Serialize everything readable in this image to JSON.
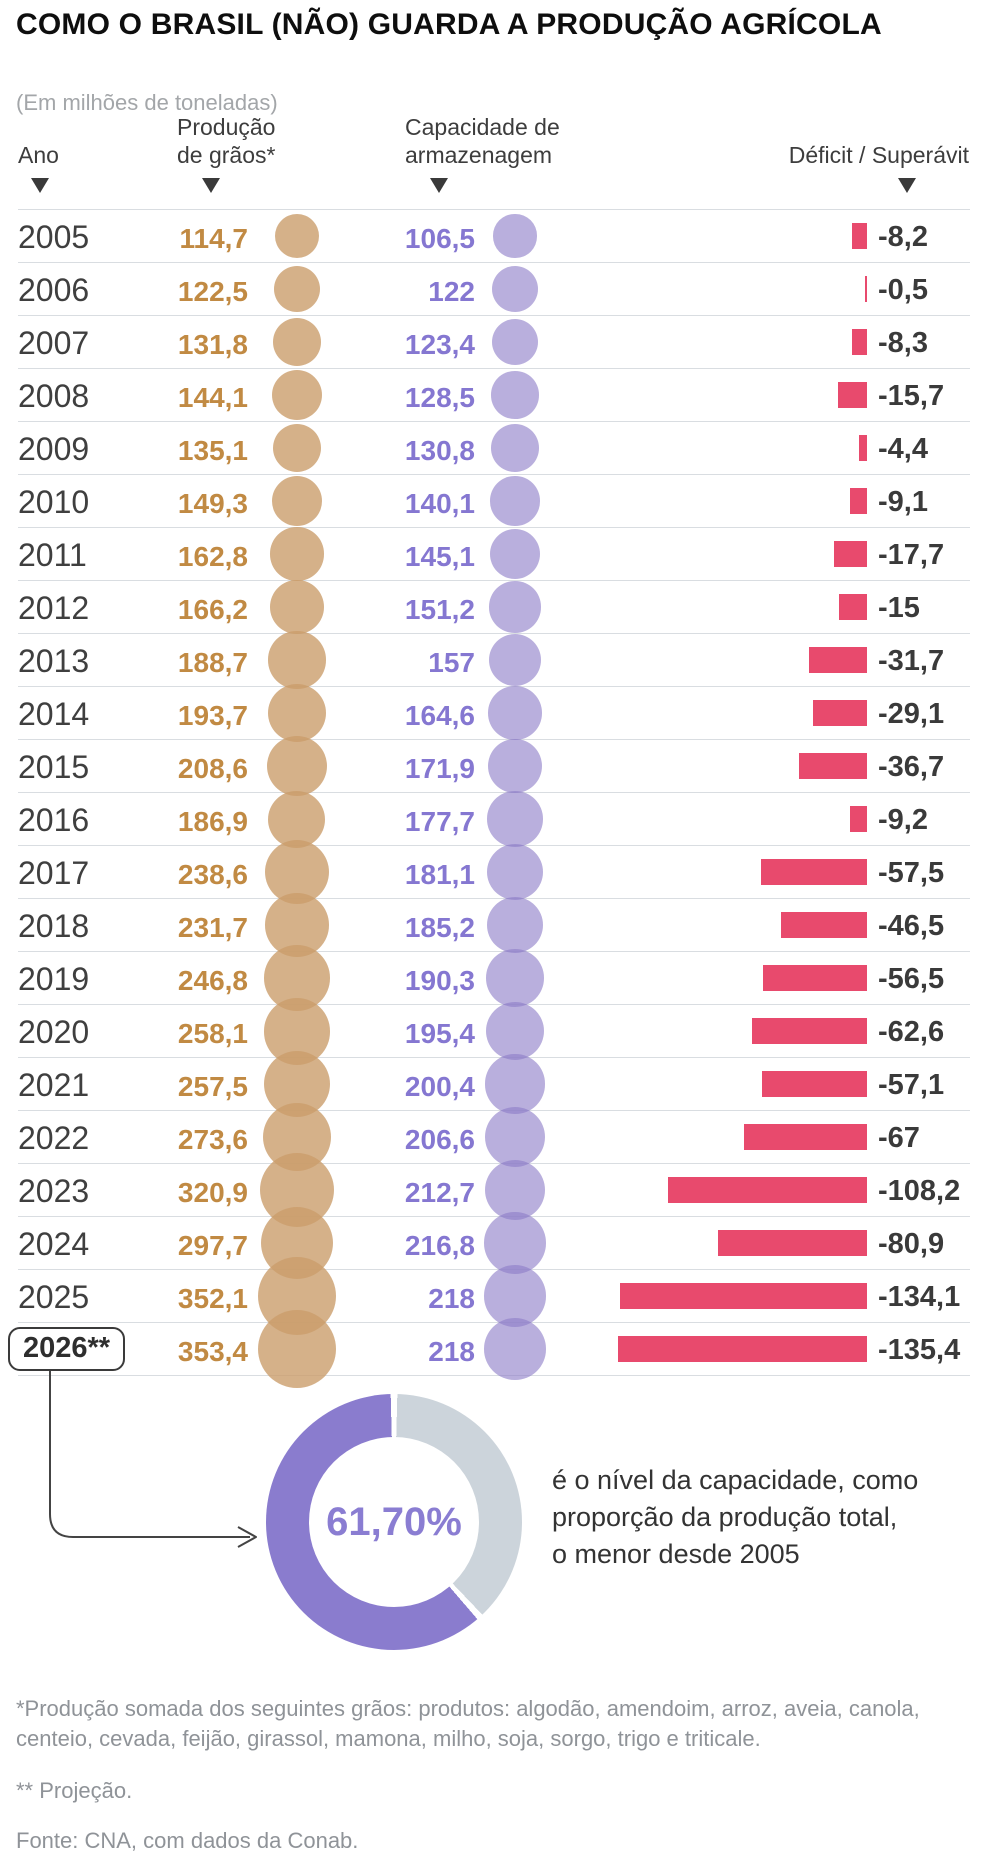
{
  "title": "COMO O BRASIL (NÃO) GUARDA A PRODUÇÃO AGRÍCOLA",
  "subtitle": "(Em milhões de toneladas)",
  "header": {
    "col_year": "Ano",
    "col_production": "Produção\nde grãos*",
    "col_capacity": "Capacidade de\narmazenagem",
    "col_deficit": "Déficit / Superávit"
  },
  "chart_data": [
    {
      "type": "table",
      "title": "COMO O BRASIL (NÃO) GUARDA A PRODUÇÃO AGRÍCOLA",
      "unit": "milhões de toneladas",
      "columns": [
        "Ano",
        "Produção de grãos*",
        "Capacidade de armazenagem",
        "Déficit / Superávit"
      ],
      "rows": [
        {
          "year": "2005",
          "production": 114.7,
          "production_label": "114,7",
          "capacity": 106.5,
          "capacity_label": "106,5",
          "deficit": -8.2,
          "deficit_label": "-8,2"
        },
        {
          "year": "2006",
          "production": 122.5,
          "production_label": "122,5",
          "capacity": 122,
          "capacity_label": "122",
          "deficit": -0.5,
          "deficit_label": "-0,5"
        },
        {
          "year": "2007",
          "production": 131.8,
          "production_label": "131,8",
          "capacity": 123.4,
          "capacity_label": "123,4",
          "deficit": -8.3,
          "deficit_label": "-8,3"
        },
        {
          "year": "2008",
          "production": 144.1,
          "production_label": "144,1",
          "capacity": 128.5,
          "capacity_label": "128,5",
          "deficit": -15.7,
          "deficit_label": "-15,7"
        },
        {
          "year": "2009",
          "production": 135.1,
          "production_label": "135,1",
          "capacity": 130.8,
          "capacity_label": "130,8",
          "deficit": -4.4,
          "deficit_label": "-4,4"
        },
        {
          "year": "2010",
          "production": 149.3,
          "production_label": "149,3",
          "capacity": 140.1,
          "capacity_label": "140,1",
          "deficit": -9.1,
          "deficit_label": "-9,1"
        },
        {
          "year": "2011",
          "production": 162.8,
          "production_label": "162,8",
          "capacity": 145.1,
          "capacity_label": "145,1",
          "deficit": -17.7,
          "deficit_label": "-17,7"
        },
        {
          "year": "2012",
          "production": 166.2,
          "production_label": "166,2",
          "capacity": 151.2,
          "capacity_label": "151,2",
          "deficit": -15,
          "deficit_label": "-15"
        },
        {
          "year": "2013",
          "production": 188.7,
          "production_label": "188,7",
          "capacity": 157,
          "capacity_label": "157",
          "deficit": -31.7,
          "deficit_label": "-31,7"
        },
        {
          "year": "2014",
          "production": 193.7,
          "production_label": "193,7",
          "capacity": 164.6,
          "capacity_label": "164,6",
          "deficit": -29.1,
          "deficit_label": "-29,1"
        },
        {
          "year": "2015",
          "production": 208.6,
          "production_label": "208,6",
          "capacity": 171.9,
          "capacity_label": "171,9",
          "deficit": -36.7,
          "deficit_label": "-36,7"
        },
        {
          "year": "2016",
          "production": 186.9,
          "production_label": "186,9",
          "capacity": 177.7,
          "capacity_label": "177,7",
          "deficit": -9.2,
          "deficit_label": "-9,2"
        },
        {
          "year": "2017",
          "production": 238.6,
          "production_label": "238,6",
          "capacity": 181.1,
          "capacity_label": "181,1",
          "deficit": -57.5,
          "deficit_label": "-57,5"
        },
        {
          "year": "2018",
          "production": 231.7,
          "production_label": "231,7",
          "capacity": 185.2,
          "capacity_label": "185,2",
          "deficit": -46.5,
          "deficit_label": "-46,5"
        },
        {
          "year": "2019",
          "production": 246.8,
          "production_label": "246,8",
          "capacity": 190.3,
          "capacity_label": "190,3",
          "deficit": -56.5,
          "deficit_label": "-56,5"
        },
        {
          "year": "2020",
          "production": 258.1,
          "production_label": "258,1",
          "capacity": 195.4,
          "capacity_label": "195,4",
          "deficit": -62.6,
          "deficit_label": "-62,6"
        },
        {
          "year": "2021",
          "production": 257.5,
          "production_label": "257,5",
          "capacity": 200.4,
          "capacity_label": "200,4",
          "deficit": -57.1,
          "deficit_label": "-57,1"
        },
        {
          "year": "2022",
          "production": 273.6,
          "production_label": "273,6",
          "capacity": 206.6,
          "capacity_label": "206,6",
          "deficit": -67,
          "deficit_label": "-67"
        },
        {
          "year": "2023",
          "production": 320.9,
          "production_label": "320,9",
          "capacity": 212.7,
          "capacity_label": "212,7",
          "deficit": -108.2,
          "deficit_label": "-108,2"
        },
        {
          "year": "2024",
          "production": 297.7,
          "production_label": "297,7",
          "capacity": 216.8,
          "capacity_label": "216,8",
          "deficit": -80.9,
          "deficit_label": "-80,9"
        },
        {
          "year": "2025",
          "production": 352.1,
          "production_label": "352,1",
          "capacity": 218,
          "capacity_label": "218",
          "deficit": -134.1,
          "deficit_label": "-134,1"
        },
        {
          "year": "2026**",
          "boxed": true,
          "production": 353.4,
          "production_label": "353,4",
          "capacity": 218,
          "capacity_label": "218",
          "deficit": -135.4,
          "deficit_label": "-135,4"
        }
      ]
    },
    {
      "type": "pie",
      "labels": [
        "capacidade como proporção da produção",
        "restante"
      ],
      "values": [
        61.7,
        38.3
      ],
      "center_label": "61,70%",
      "legend_position": "none"
    }
  ],
  "donut": {
    "label": "61,70%",
    "percent": 61.7,
    "description": "é o nível da capacidade, como\nproporção da produção total,\no menor desde 2005"
  },
  "footnotes": {
    "grains": "*Produção somada dos seguintes grãos: produtos: algodão, amendoim, arroz, aveia, canola, centeio, cevada, feijão, girassol, mamona, milho, soja, sorgo, trigo e triticale.",
    "projection": "** Projeção.",
    "source": "Fonte: CNA, com dados da Conab."
  },
  "colors": {
    "prod_text": "#c18a43",
    "cap_text": "#8577d1",
    "bar_red": "#e84a6d",
    "tan_circle": "rgba(202,157,107,0.8)",
    "purple_circle": "rgba(142,126,200,0.62)",
    "donut_purple": "#8a7cce",
    "donut_gray": "#ccd4db"
  }
}
